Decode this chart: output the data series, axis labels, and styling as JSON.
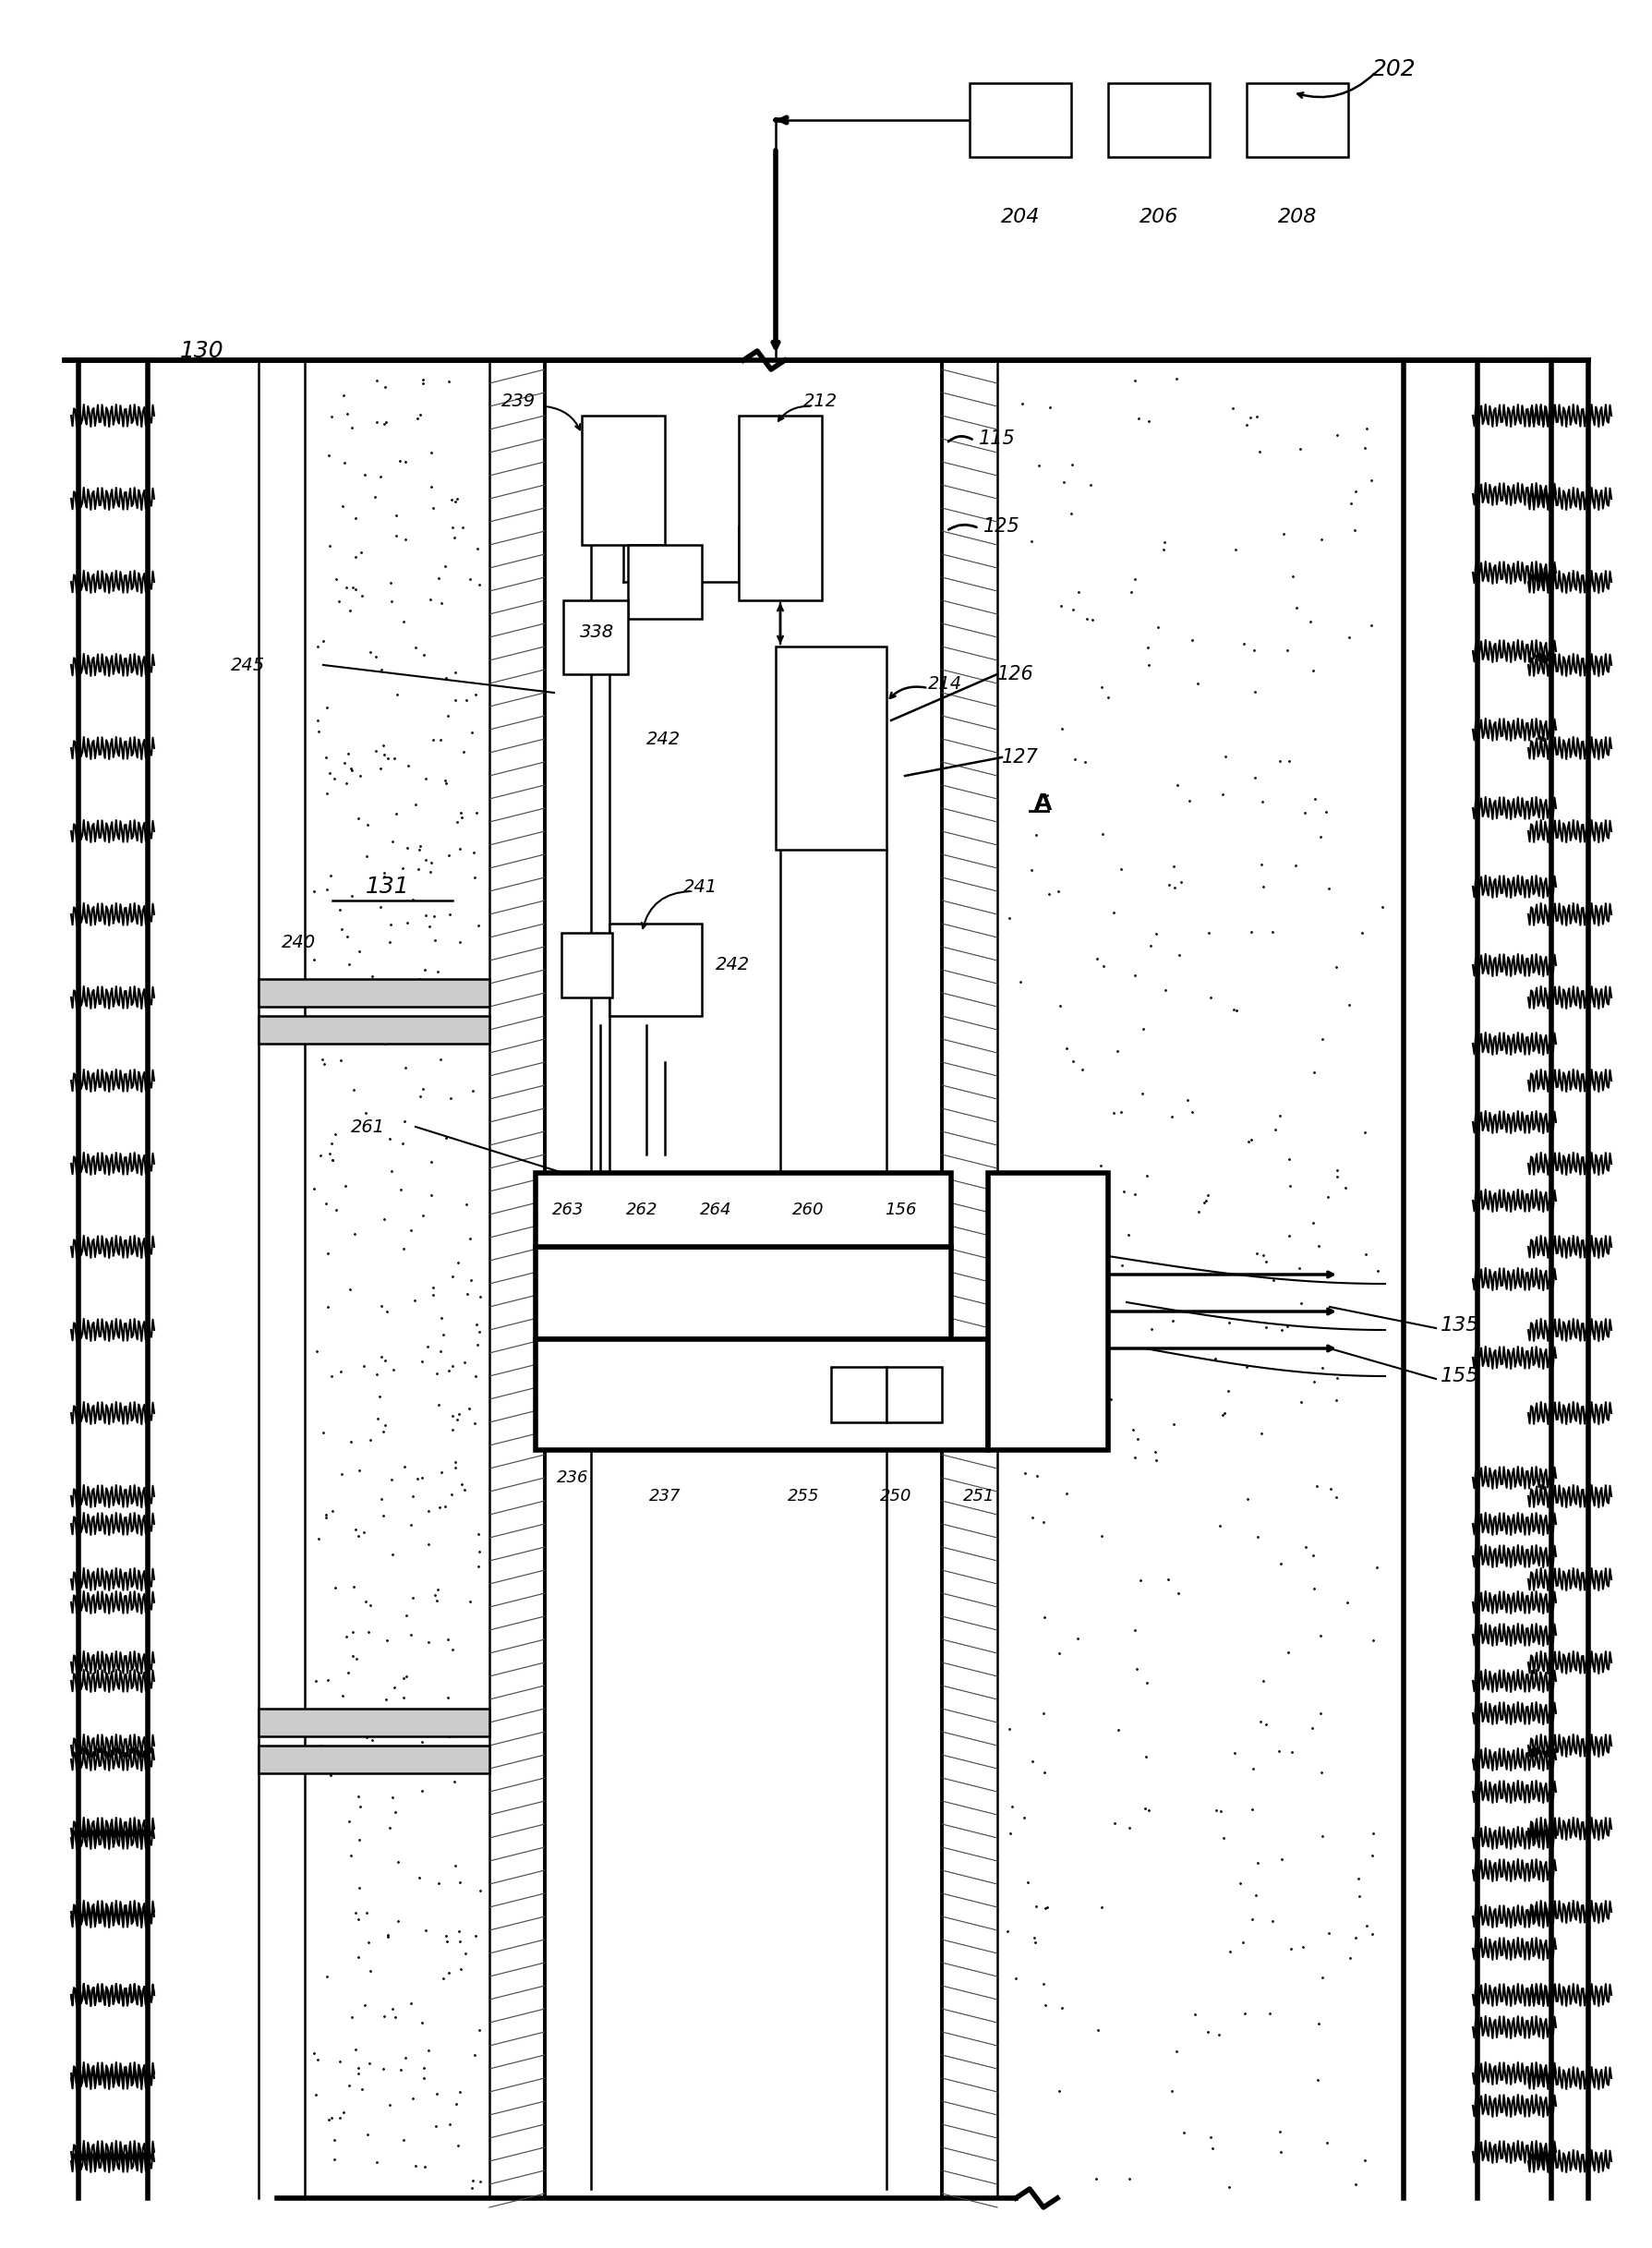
{
  "fig_width": 17.9,
  "fig_height": 24.34,
  "bg_color": "#ffffff",
  "line_color": "#000000",
  "label_202": "202",
  "label_204": "204",
  "label_206": "206",
  "label_208": "208",
  "label_130": "130",
  "label_131": "131",
  "label_115": "115",
  "label_125": "125",
  "label_126": "126",
  "label_127": "127",
  "label_214": "214",
  "label_212": "212",
  "label_239": "239",
  "label_338": "338",
  "label_242": "242",
  "label_245": "245",
  "label_240": "240",
  "label_241": "241",
  "label_261": "261",
  "label_263": "263",
  "label_262": "262",
  "label_264": "264",
  "label_260": "260",
  "label_156": "156",
  "label_236": "236",
  "label_237": "237",
  "label_255": "255",
  "label_250": "250",
  "label_251": "251",
  "label_135": "135",
  "label_155": "155",
  "label_A": "A"
}
